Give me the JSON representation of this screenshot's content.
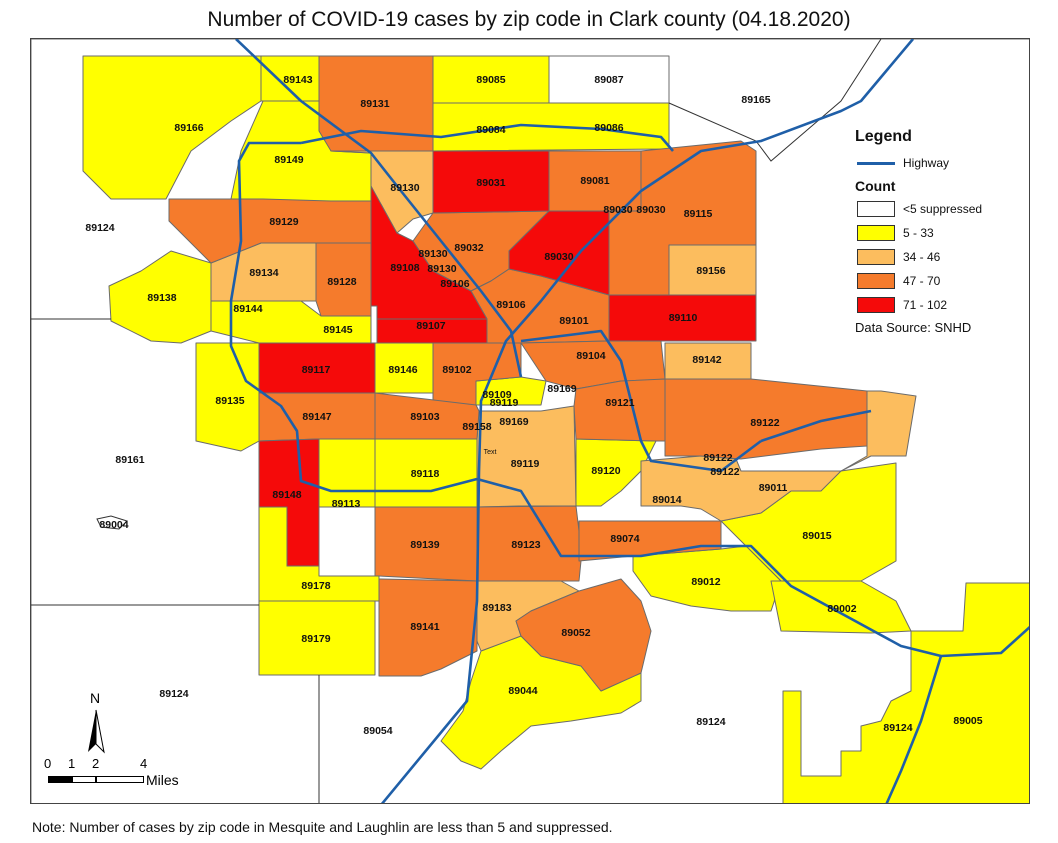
{
  "title": "Number of COVID-19 cases by zip code in Clark county (04.18.2020)",
  "note": "Note: Number of cases by zip code in Mesquite and Laughlin are less than 5 and suppressed.",
  "legend": {
    "title": "Legend",
    "highway_label": "Highway",
    "count_title": "Count",
    "classes": [
      {
        "label": "<5 suppressed",
        "color": "#ffffff"
      },
      {
        "label": "5 - 33",
        "color": "#ffff00"
      },
      {
        "label": "34 - 46",
        "color": "#fcbd5e"
      },
      {
        "label": "47 - 70",
        "color": "#f57b2c"
      },
      {
        "label": "71 - 102",
        "color": "#f50a0a"
      }
    ],
    "source": "Data Source: SNHD"
  },
  "highway_color": "#1f5fa8",
  "north_label": "N",
  "scale": {
    "ticks": [
      "0",
      "1",
      "2",
      "4"
    ],
    "unit": "Miles"
  },
  "zip_labels": [
    "89143",
    "89085",
    "89087",
    "89165",
    "89166",
    "89131",
    "89084",
    "89086",
    "89149",
    "89130",
    "89031",
    "89081",
    "89124",
    "89129",
    "89030",
    "89030",
    "89115",
    "89130",
    "89032",
    "89030",
    "89134",
    "89108",
    "89130",
    "89128",
    "89106",
    "89156",
    "89138",
    "89144",
    "89106",
    "89145",
    "89107",
    "89101",
    "89110",
    "89104",
    "89117",
    "89146",
    "89102",
    "89142",
    "89109",
    "89169",
    "89135",
    "89119",
    "89121",
    "89147",
    "89103",
    "89158",
    "89169",
    "89122",
    "89161",
    "89119",
    "89120",
    "89122",
    "89122",
    "89148",
    "89118",
    "89014",
    "89011",
    "89004",
    "89113",
    "89139",
    "89123",
    "89074",
    "89015",
    "89178",
    "89012",
    "89183",
    "89002",
    "89141",
    "89052",
    "89179",
    "89124",
    "89044",
    "89005",
    "89054",
    "89124",
    "89124",
    "Text"
  ]
}
